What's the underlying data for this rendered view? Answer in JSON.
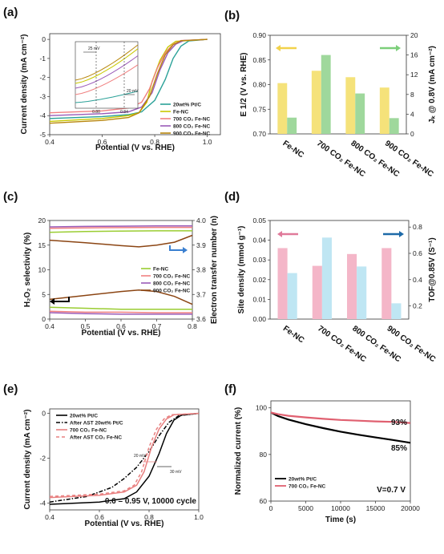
{
  "chart_data": [
    {
      "panel": "(a)",
      "type": "line",
      "xlabel": "Potential (V vs. RHE)",
      "ylabel": "Current density (mA cm⁻²)",
      "xlim": [
        0.4,
        1.05
      ],
      "ylim": [
        -5,
        0.3
      ],
      "xticks": [
        "0.4",
        "0.6",
        "0.8",
        "1.0"
      ],
      "yticks": [
        "-5",
        "-4",
        "-3",
        "-2",
        "-1",
        "0"
      ],
      "series": [
        {
          "name": "20wt% Pt/C",
          "color": "#2aa198",
          "x": [
            0.4,
            0.6,
            0.7,
            0.75,
            0.8,
            0.84,
            0.87,
            0.9,
            0.93,
            1.0
          ],
          "y": [
            -4.15,
            -4.05,
            -3.95,
            -3.8,
            -3.2,
            -2.1,
            -1.0,
            -0.35,
            -0.08,
            0
          ]
        },
        {
          "name": "Fe-NC",
          "color": "#c8c800",
          "x": [
            0.4,
            0.6,
            0.7,
            0.74,
            0.77,
            0.79,
            0.82,
            0.85,
            0.88,
            1.0
          ],
          "y": [
            -4.3,
            -4.15,
            -4.0,
            -3.85,
            -3.3,
            -2.2,
            -1.1,
            -0.4,
            -0.1,
            0
          ]
        },
        {
          "name": "700 CO₂ Fe-NC",
          "color": "#f08080",
          "x": [
            0.4,
            0.6,
            0.7,
            0.75,
            0.78,
            0.81,
            0.84,
            0.87,
            0.9,
            1.0
          ],
          "y": [
            -3.85,
            -3.75,
            -3.6,
            -3.3,
            -2.6,
            -1.5,
            -0.7,
            -0.25,
            -0.06,
            0
          ]
        },
        {
          "name": "800 CO₂ Fe-NC",
          "color": "#9a5bb8",
          "x": [
            0.4,
            0.6,
            0.7,
            0.75,
            0.79,
            0.82,
            0.85,
            0.88,
            0.91,
            1.0
          ],
          "y": [
            -4.0,
            -3.9,
            -3.8,
            -3.55,
            -2.8,
            -1.6,
            -0.7,
            -0.25,
            -0.06,
            0
          ]
        },
        {
          "name": "900 CO₂ Fe-NC",
          "color": "#b8860b",
          "x": [
            0.4,
            0.6,
            0.7,
            0.74,
            0.78,
            0.81,
            0.84,
            0.87,
            0.9,
            1.0
          ],
          "y": [
            -4.4,
            -4.25,
            -4.1,
            -3.85,
            -3.0,
            -1.8,
            -0.8,
            -0.28,
            -0.07,
            0
          ]
        }
      ],
      "inset": {
        "ann1": "25 mV",
        "ann2": "20 mV",
        "xticks": [
          "0.80",
          "0.84"
        ]
      }
    },
    {
      "panel": "(b)",
      "type": "bar",
      "categories": [
        "Fe-NC",
        "700 CO₂ Fe-NC",
        "800 CO₂ Fe-NC",
        "900 CO₂ Fe-NC"
      ],
      "ylabel_left": "E 1/2 (V vs. RHE)",
      "ylabel_right": "Jₖ @ 0.8V (mA cm⁻²)",
      "ylim_left": [
        0.7,
        0.9
      ],
      "ylim_right": [
        0,
        20
      ],
      "yticks_left": [
        "0.70",
        "0.75",
        "0.80",
        "0.85",
        "0.90"
      ],
      "yticks_right": [
        "0",
        "4",
        "8",
        "12",
        "16",
        "20"
      ],
      "series": [
        {
          "name": "E 1/2",
          "axis": "left",
          "color": "#f5e27a",
          "values": [
            0.803,
            0.828,
            0.815,
            0.794
          ]
        },
        {
          "name": "Jₖ @ 0.8V",
          "axis": "right",
          "color": "#9fd89c",
          "values": [
            3.3,
            16.0,
            8.2,
            3.2
          ]
        }
      ]
    },
    {
      "panel": "(c)",
      "type": "line",
      "xlabel": "Potential (V vs. RHE)",
      "ylabel_left": "H₂O₂ selectivity (%)",
      "ylabel_right": "Electron transfer number (n)",
      "xlim": [
        0.4,
        0.8
      ],
      "ylim_left": [
        0,
        20
      ],
      "ylim_right": [
        3.6,
        4.0
      ],
      "xticks": [
        "0.4",
        "0.5",
        "0.6",
        "0.7",
        "0.8"
      ],
      "yticks_left": [
        "0",
        "5",
        "10",
        "15",
        "20"
      ],
      "yticks_right": [
        "3.6",
        "3.7",
        "3.8",
        "3.9",
        "4.0"
      ],
      "series": [
        {
          "name": "Fe-NC",
          "color": "#9acd32",
          "h2o2": {
            "x": [
              0.4,
              0.5,
              0.6,
              0.7,
              0.8
            ],
            "y": [
              2.4,
              2.2,
              2.0,
              2.0,
              2.0
            ]
          },
          "n": {
            "x": [
              0.4,
              0.5,
              0.6,
              0.7,
              0.8
            ],
            "y": [
              3.952,
              3.955,
              3.957,
              3.958,
              3.958
            ]
          }
        },
        {
          "name": "700 CO₂ Fe-NC",
          "color": "#f08080",
          "h2o2": {
            "x": [
              0.4,
              0.5,
              0.6,
              0.7,
              0.8
            ],
            "y": [
              1.6,
              1.4,
              1.4,
              1.3,
              1.3
            ]
          },
          "n": {
            "x": [
              0.4,
              0.5,
              0.6,
              0.7,
              0.8
            ],
            "y": [
              3.968,
              3.97,
              3.971,
              3.972,
              3.972
            ]
          }
        },
        {
          "name": "800 CO₂ Fe-NC",
          "color": "#9a5bb8",
          "h2o2": {
            "x": [
              0.4,
              0.5,
              0.6,
              0.7,
              0.8
            ],
            "y": [
              1.3,
              1.1,
              1.0,
              1.0,
              1.0
            ]
          },
          "n": {
            "x": [
              0.4,
              0.5,
              0.6,
              0.7,
              0.8
            ],
            "y": [
              3.974,
              3.976,
              3.977,
              3.978,
              3.978
            ]
          }
        },
        {
          "name": "900 CO₂ Fe-NC",
          "color": "#8b4513",
          "h2o2": {
            "x": [
              0.4,
              0.5,
              0.6,
              0.65,
              0.7,
              0.75,
              0.8
            ],
            "y": [
              4.0,
              4.8,
              5.6,
              5.9,
              5.6,
              4.6,
              3.0
            ]
          },
          "n": {
            "x": [
              0.4,
              0.5,
              0.6,
              0.65,
              0.7,
              0.75,
              0.8
            ],
            "y": [
              3.92,
              3.91,
              3.898,
              3.893,
              3.9,
              3.912,
              3.94
            ]
          }
        }
      ]
    },
    {
      "panel": "(d)",
      "type": "bar",
      "categories": [
        "Fe-NC",
        "700 CO₂ Fe-NC",
        "800 CO₂ Fe-NC",
        "900 CO₂ Fe-NC"
      ],
      "ylabel_left": "Site density (mmol g⁻¹)",
      "ylabel_right": "TOF@0.85V (S⁻¹)",
      "ylim_left": [
        0,
        0.05
      ],
      "ylim_right": [
        0.1,
        0.85
      ],
      "yticks_left": [
        "0.00",
        "0.01",
        "0.02",
        "0.03",
        "0.04",
        "0.05"
      ],
      "yticks_right": [
        "0.2",
        "0.4",
        "0.6",
        "0.8"
      ],
      "series": [
        {
          "name": "Site density",
          "axis": "left",
          "color": "#f4b6c8",
          "values": [
            0.036,
            0.027,
            0.033,
            0.036
          ]
        },
        {
          "name": "TOF@0.85V",
          "axis": "right",
          "color": "#bfe6f3",
          "values": [
            0.45,
            0.72,
            0.5,
            0.22
          ]
        }
      ]
    },
    {
      "panel": "(e)",
      "type": "line",
      "xlabel": "Potential (V vs. RHE)",
      "ylabel": "Current density (mA cm⁻²)",
      "xlim": [
        0.4,
        1.0
      ],
      "ylim": [
        -4.3,
        0.2
      ],
      "xticks": [
        "0.4",
        "0.6",
        "0.8",
        "1.0"
      ],
      "yticks": [
        "-4",
        "-2",
        "0"
      ],
      "annotation": "0.6 – 0.95 V, 10000 cycle",
      "ann1": "20 mV",
      "ann2": "30 mV",
      "series": [
        {
          "name": "20wt% Pt/C",
          "color": "#000000",
          "dash": "",
          "x": [
            0.4,
            0.6,
            0.7,
            0.75,
            0.8,
            0.84,
            0.87,
            0.9,
            0.93,
            1.0
          ],
          "y": [
            -4.05,
            -3.95,
            -3.8,
            -3.5,
            -2.8,
            -1.8,
            -0.9,
            -0.3,
            -0.08,
            0
          ]
        },
        {
          "name": "After AST 20wt% Pt/C",
          "color": "#000000",
          "dash": "5,2,1.5,2",
          "x": [
            0.4,
            0.55,
            0.65,
            0.7,
            0.75,
            0.8,
            0.84,
            0.88,
            0.92,
            1.0
          ],
          "y": [
            -3.95,
            -3.7,
            -3.3,
            -2.9,
            -2.4,
            -1.7,
            -1.0,
            -0.4,
            -0.1,
            0
          ]
        },
        {
          "name": "700 CO₂ Fe-NC",
          "color": "#e88080",
          "dash": "",
          "x": [
            0.4,
            0.6,
            0.7,
            0.75,
            0.78,
            0.81,
            0.84,
            0.87,
            0.9,
            1.0
          ],
          "y": [
            -3.75,
            -3.65,
            -3.5,
            -3.2,
            -2.6,
            -1.5,
            -0.7,
            -0.25,
            -0.06,
            0
          ]
        },
        {
          "name": "After AST CO₂ Fe-NC",
          "color": "#e88080",
          "dash": "4,3",
          "x": [
            0.4,
            0.6,
            0.7,
            0.74,
            0.77,
            0.8,
            0.83,
            0.86,
            0.89,
            1.0
          ],
          "y": [
            -3.7,
            -3.6,
            -3.45,
            -3.2,
            -2.6,
            -1.5,
            -0.7,
            -0.25,
            -0.06,
            0
          ]
        }
      ]
    },
    {
      "panel": "(f)",
      "type": "line",
      "xlabel": "Time (s)",
      "ylabel": "Normalized current (%)",
      "xlim": [
        0,
        20000
      ],
      "ylim": [
        60,
        103
      ],
      "xticks": [
        "0",
        "5000",
        "10000",
        "15000",
        "20000"
      ],
      "yticks": [
        "60",
        "80",
        "100"
      ],
      "annotation": "V=0.7 V",
      "label_top": "93%",
      "label_bottom": "85%",
      "series": [
        {
          "name": "20wt% Pt/C",
          "color": "#000000",
          "x": [
            0,
            1000,
            2500,
            5000,
            7500,
            10000,
            12500,
            15000,
            17500,
            20000
          ],
          "y": [
            98,
            96.5,
            95,
            93,
            91.3,
            89.8,
            88.5,
            87.3,
            86.2,
            85
          ]
        },
        {
          "name": "700 CO₂ Fe-NC",
          "color": "#e06070",
          "x": [
            0,
            1000,
            2500,
            5000,
            7500,
            10000,
            12500,
            15000,
            17500,
            20000
          ],
          "y": [
            98,
            97.3,
            96.6,
            95.9,
            95.3,
            94.8,
            94.5,
            94.2,
            94.0,
            93.5
          ]
        }
      ]
    }
  ]
}
